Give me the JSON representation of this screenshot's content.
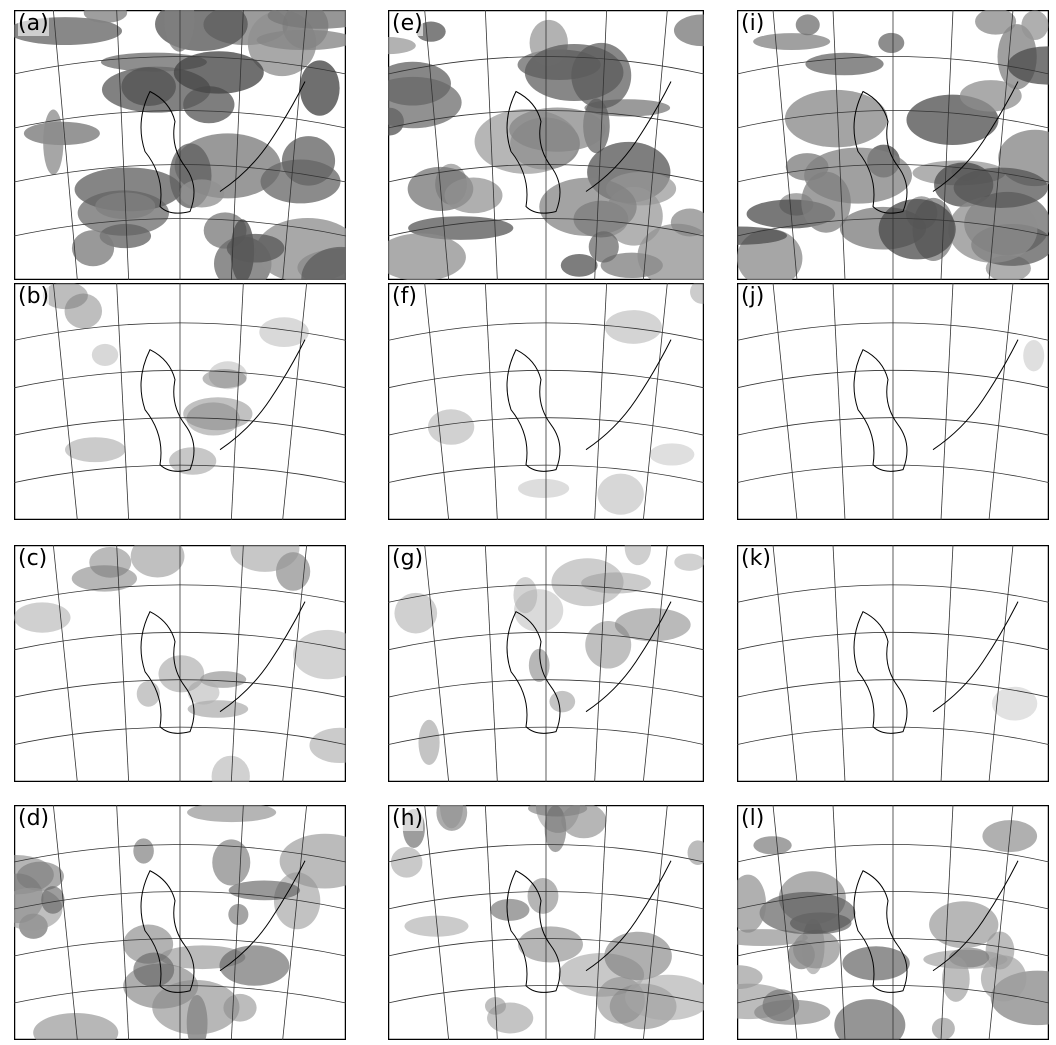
{
  "panels": [
    {
      "label": "(a)"
    },
    {
      "label": "(e)"
    },
    {
      "label": "(i)"
    },
    {
      "label": "(b)"
    },
    {
      "label": "(f)"
    },
    {
      "label": "(j)"
    },
    {
      "label": "(c)"
    },
    {
      "label": "(g)"
    },
    {
      "label": "(k)"
    },
    {
      "label": "(d)"
    },
    {
      "label": "(h)"
    },
    {
      "label": "(l)"
    }
  ]
}
